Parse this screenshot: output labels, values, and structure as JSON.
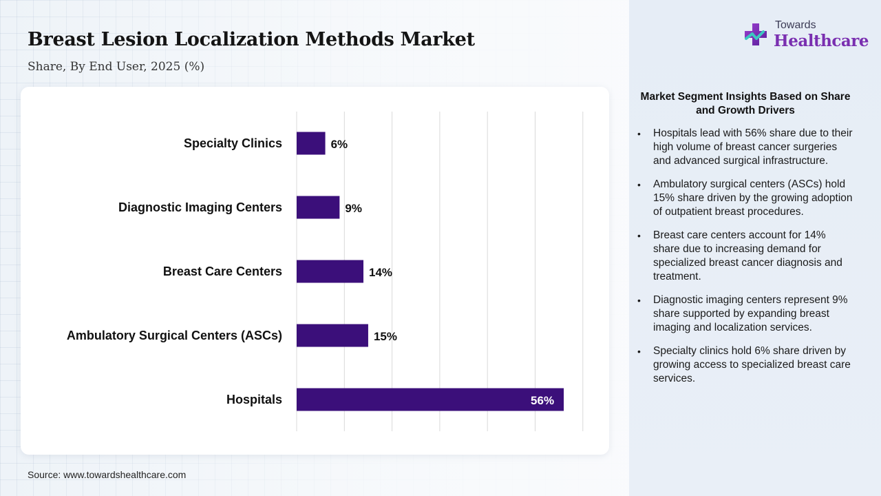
{
  "header": {
    "title": "Breast Lesion Localization Methods Market",
    "subtitle": "Share, By End User, 2025 (%)"
  },
  "logo": {
    "top_text": "Towards",
    "main_text": "Healthcare",
    "icon": "medical-cross-icon"
  },
  "source": "Source: www.towardshealthcare.com",
  "colors": {
    "bar": "#3b0f7a",
    "brand": "#7a2fb0",
    "grid": "#d9d9d9"
  },
  "chart_data": {
    "type": "bar",
    "orientation": "horizontal",
    "title": "Breast Lesion Localization Methods Market",
    "subtitle": "Share, By End User, 2025 (%)",
    "categories": [
      "Specialty Clinics",
      "Diagnostic Imaging Centers",
      "Breast Care Centers",
      "Ambulatory Surgical Centers (ASCs)",
      "Hospitals"
    ],
    "values": [
      6,
      9,
      14,
      15,
      56
    ],
    "value_labels": [
      "6%",
      "9%",
      "14%",
      "15%",
      "56%"
    ],
    "xlim": [
      0,
      60
    ],
    "grid": true,
    "legend": "none"
  },
  "insights": {
    "title": "Market Segment Insights Based on Share and Growth Drivers",
    "bullet": "•",
    "items": [
      "Hospitals lead with 56% share due to their high volume of breast cancer surgeries and advanced surgical infrastructure.",
      "Ambulatory surgical centers (ASCs) hold 15% share driven by the growing adoption of outpatient breast procedures.",
      "Breast care centers account for 14% share due to increasing demand for specialized breast cancer diagnosis and treatment.",
      "Diagnostic imaging centers represent 9% share supported by expanding breast imaging and localization services.",
      "Specialty clinics hold 6% share driven by growing access to specialized breast care services."
    ]
  }
}
